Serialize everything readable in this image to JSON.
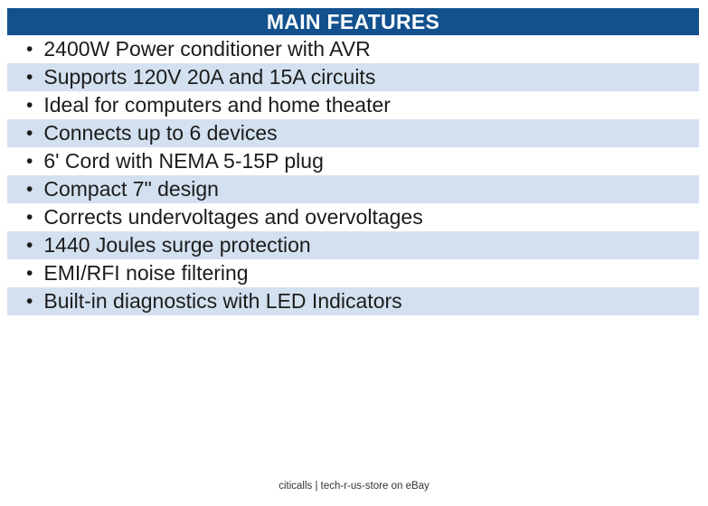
{
  "header": {
    "title": "MAIN FEATURES"
  },
  "list": {
    "bullet_glyph": "•",
    "items": [
      "2400W Power conditioner with AVR",
      "Supports 120V 20A and 15A circuits",
      "Ideal for computers and home theater",
      "Connects up to 6 devices",
      "6' Cord with NEMA 5-15P plug",
      "Compact 7\" design",
      "Corrects undervoltages and overvoltages",
      "1440 Joules surge protection",
      "EMI/RFI noise filtering",
      "Built-in diagnostics with LED Indicators"
    ]
  },
  "footer": {
    "caption": "citicalls | tech-r-us-store on eBay"
  },
  "colors": {
    "header_bg": "#12518E",
    "header_text": "#FFFFFF",
    "row_bg": "#FFFFFF",
    "row_alt_bg": "#D3E0EF",
    "text": "#1C1C1C",
    "caption_text": "#333333"
  }
}
